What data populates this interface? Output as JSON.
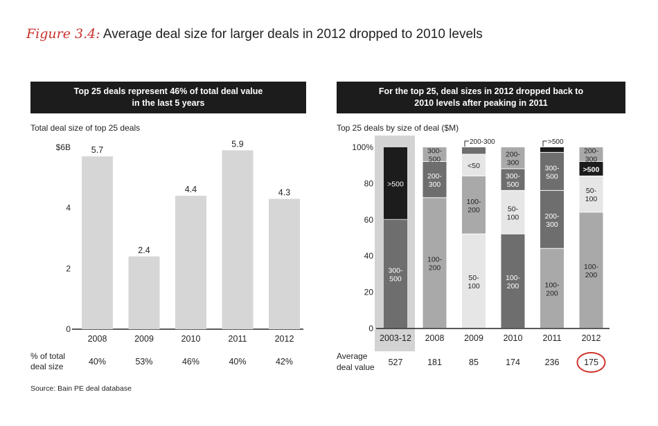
{
  "title": {
    "figure_label": "Figure 3.4:",
    "text": "Average deal size for larger deals in 2012 dropped to 2010 levels"
  },
  "left_header": {
    "line1": "Top 25 deals represent 46% of total deal value",
    "line2": "in the last 5 years"
  },
  "right_header": {
    "line1": "For the top 25, deal sizes in 2012  dropped back to",
    "line2": "2010 levels after peaking in 2011"
  },
  "source": "Source: Bain PE deal database",
  "colors": {
    "bar_light": "#d6d6d6",
    "darkest": "#1c1c1c",
    "dark": "#6e6e6e",
    "mid": "#a9a9a9",
    "light": "#e6e6e6",
    "highlight": "#d3d3d3",
    "circle": "#d0342c"
  },
  "chart_data": [
    {
      "type": "bar",
      "title": "Top 25 deals represent 46% of total deal value in the last 5 years",
      "ylabel": "Total deal size of top 25 deals",
      "categories": [
        "2008",
        "2009",
        "2010",
        "2011",
        "2012"
      ],
      "values": [
        5.7,
        2.4,
        4.4,
        5.9,
        4.3
      ],
      "value_labels": [
        "5.7",
        "2.4",
        "4.4",
        "5.9",
        "4.3"
      ],
      "ylim": [
        0,
        6
      ],
      "yticks": [
        {
          "v": 0,
          "label": "0"
        },
        {
          "v": 2,
          "label": "2"
        },
        {
          "v": 4,
          "label": "4"
        },
        {
          "v": 6,
          "label": "$6B"
        }
      ],
      "bottom_row": {
        "label_line1": "% of total",
        "label_line2": "deal size",
        "values": [
          "40%",
          "53%",
          "46%",
          "40%",
          "42%"
        ]
      }
    },
    {
      "type": "bar",
      "stacked": true,
      "title": "For the top 25, deal sizes in 2012 dropped back to 2010 levels after peaking in 2011",
      "ylabel": "Top 25 deals by size of deal ($M)",
      "categories": [
        "2003-12",
        "2008",
        "2009",
        "2010",
        "2011",
        "2012"
      ],
      "ylim": [
        0,
        100
      ],
      "yticks": [
        {
          "v": 0,
          "label": "0"
        },
        {
          "v": 20,
          "label": "20"
        },
        {
          "v": 40,
          "label": "40"
        },
        {
          "v": 60,
          "label": "60"
        },
        {
          "v": 80,
          "label": "80"
        },
        {
          "v": 100,
          "label": "100%"
        }
      ],
      "columns": [
        {
          "category": "2003-12",
          "segments": [
            {
              "name": "300-500",
              "label_lines": [
                "300-",
                "500"
              ],
              "value": 60,
              "shade": "dark"
            },
            {
              "name": ">500",
              "label_lines": [
                ">500"
              ],
              "value": 40,
              "shade": "darkest"
            }
          ]
        },
        {
          "category": "2008",
          "segments": [
            {
              "name": "100-200",
              "label_lines": [
                "100-",
                "200"
              ],
              "value": 72,
              "shade": "mid"
            },
            {
              "name": "200-300",
              "label_lines": [
                "200-",
                "300"
              ],
              "value": 20,
              "shade": "dark"
            },
            {
              "name": "300-500",
              "label_lines": [
                "300-",
                "500"
              ],
              "value": 8,
              "shade": "mid"
            }
          ]
        },
        {
          "category": "2009",
          "segments": [
            {
              "name": "50-100",
              "label_lines": [
                "50-",
                "100"
              ],
              "value": 52,
              "shade": "light"
            },
            {
              "name": "100-200",
              "label_lines": [
                "100-",
                "200"
              ],
              "value": 32,
              "shade": "mid"
            },
            {
              "name": "<50",
              "label_lines": [
                "<50"
              ],
              "value": 12,
              "shade": "light"
            },
            {
              "name": "200-300",
              "label_lines": [],
              "value": 4,
              "shade": "dark",
              "callout": "200-300"
            }
          ]
        },
        {
          "category": "2010",
          "segments": [
            {
              "name": "100-200",
              "label_lines": [
                "100-",
                "200"
              ],
              "value": 52,
              "shade": "dark"
            },
            {
              "name": "50-100",
              "label_lines": [
                "50-",
                "100"
              ],
              "value": 24,
              "shade": "light"
            },
            {
              "name": "300-500",
              "label_lines": [
                "300-",
                "500"
              ],
              "value": 12,
              "shade": "dark"
            },
            {
              "name": "200-300",
              "label_lines": [
                "200-",
                "300"
              ],
              "value": 12,
              "shade": "mid"
            }
          ]
        },
        {
          "category": "2011",
          "segments": [
            {
              "name": "100-200",
              "label_lines": [
                "100-",
                "200"
              ],
              "value": 44,
              "shade": "mid"
            },
            {
              "name": "200-300",
              "label_lines": [
                "200-",
                "300"
              ],
              "value": 32,
              "shade": "dark"
            },
            {
              "name": "300-500",
              "label_lines": [
                "300-",
                "500"
              ],
              "value": 21,
              "shade": "dark"
            },
            {
              "name": ">500",
              "label_lines": [],
              "value": 3,
              "shade": "darkest",
              "callout": ">500"
            }
          ]
        },
        {
          "category": "2012",
          "segments": [
            {
              "name": "100-200",
              "label_lines": [
                "100-",
                "200"
              ],
              "value": 64,
              "shade": "mid"
            },
            {
              "name": "50-100",
              "label_lines": [
                "50-",
                "100"
              ],
              "value": 20,
              "shade": "light"
            },
            {
              "name": ">500",
              "label_lines": [
                ">500"
              ],
              "value": 8,
              "shade": "darkest"
            },
            {
              "name": "200-300",
              "label_lines": [
                "200-",
                "300"
              ],
              "value": 8,
              "shade": "mid"
            }
          ]
        }
      ],
      "bottom_row": {
        "label_line1": "Average",
        "label_line2": "deal value",
        "values": [
          "527",
          "181",
          "85",
          "174",
          "236",
          "175"
        ],
        "circled_index": 5
      }
    }
  ]
}
